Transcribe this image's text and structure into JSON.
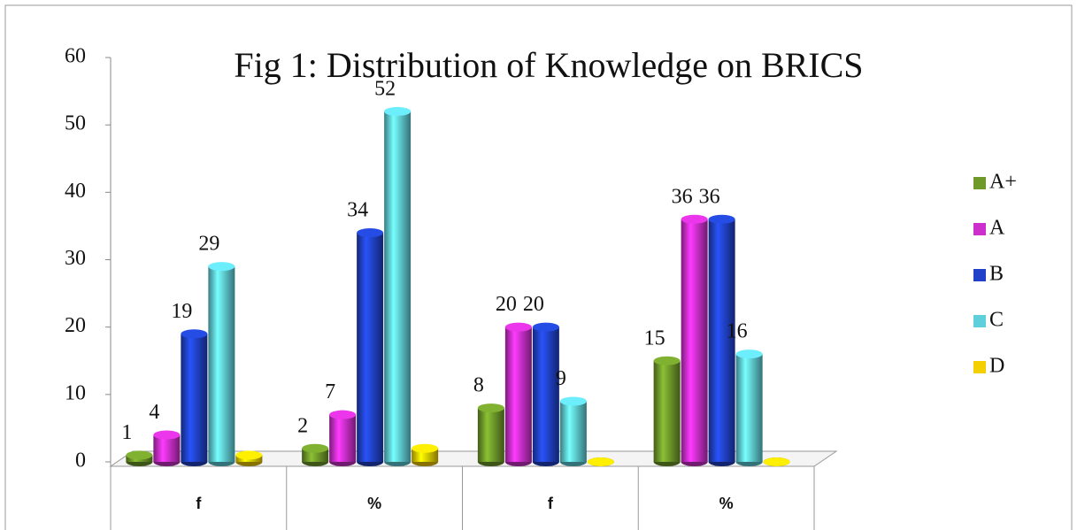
{
  "chart_data": {
    "type": "bar3d",
    "title": "Fig 1: Distribution of Knowledge on BRICS",
    "categories": [
      "f",
      "%",
      "f",
      "%"
    ],
    "series": [
      {
        "name": "A+",
        "color": "#6f9a2a",
        "values": [
          1,
          2,
          8,
          15
        ],
        "data_labels": true
      },
      {
        "name": "A",
        "color": "#cc2fcc",
        "values": [
          4,
          7,
          20,
          36
        ],
        "data_labels": true
      },
      {
        "name": "B",
        "color": "#2142c8",
        "values": [
          19,
          34,
          20,
          36
        ],
        "data_labels": true
      },
      {
        "name": "C",
        "color": "#5fcfdc",
        "values": [
          29,
          52,
          9,
          16
        ],
        "data_labels": true
      },
      {
        "name": "D",
        "color": "#f5d000",
        "values": [
          1,
          2,
          0,
          0
        ],
        "data_labels": false
      }
    ],
    "ylim": [
      0,
      60
    ],
    "yticks": [
      0,
      10,
      20,
      30,
      40,
      50,
      60
    ],
    "legend": "right"
  }
}
